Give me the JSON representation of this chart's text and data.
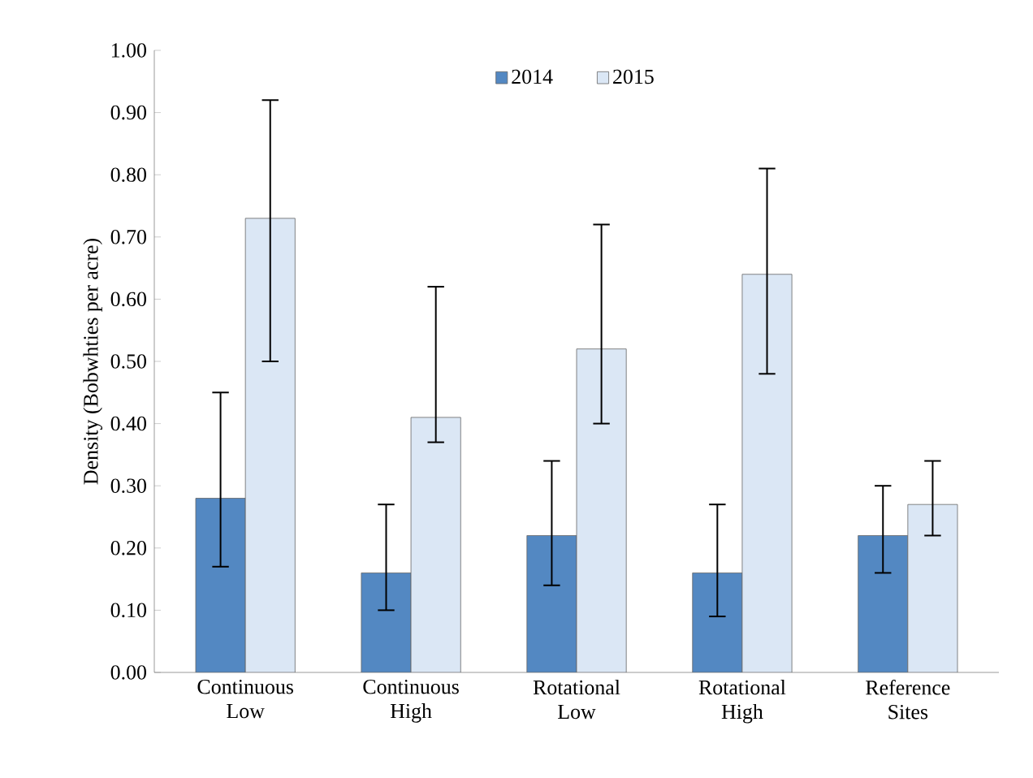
{
  "chart_data": {
    "type": "bar",
    "ylabel": "Density (Bobwhties per acre)",
    "categories": [
      "Continuous Low",
      "Continuous High",
      "Rotational Low",
      "Rotational High",
      "Reference Sites"
    ],
    "series": [
      {
        "name": "2014",
        "color": "#5388c2",
        "values": [
          0.28,
          0.16,
          0.22,
          0.16,
          0.22
        ],
        "errors": [
          [
            0.17,
            0.45
          ],
          [
            0.1,
            0.27
          ],
          [
            0.14,
            0.34
          ],
          [
            0.09,
            0.27
          ],
          [
            0.16,
            0.3
          ]
        ]
      },
      {
        "name": "2015",
        "color": "#dbe7f5",
        "values": [
          0.73,
          0.41,
          0.52,
          0.64,
          0.27
        ],
        "errors": [
          [
            0.5,
            0.92
          ],
          [
            0.37,
            0.62
          ],
          [
            0.4,
            0.72
          ],
          [
            0.48,
            0.81
          ],
          [
            0.22,
            0.34
          ]
        ]
      }
    ],
    "ylim": [
      0,
      1
    ],
    "yticks": [
      {
        "value": 0,
        "label": "0.00"
      },
      {
        "value": 0.1,
        "label": "0.10"
      },
      {
        "value": 0.2,
        "label": "0.20"
      },
      {
        "value": 0.3,
        "label": "0.30"
      },
      {
        "value": 0.4,
        "label": "0.40"
      },
      {
        "value": 0.5,
        "label": "0.50"
      },
      {
        "value": 0.6,
        "label": "0.60"
      },
      {
        "value": 0.7,
        "label": "0.70"
      },
      {
        "value": 0.8,
        "label": "0.80"
      },
      {
        "value": 0.9,
        "label": "0.90"
      },
      {
        "value": 1,
        "label": "1.00"
      }
    ],
    "legend": "top",
    "grid": false
  }
}
